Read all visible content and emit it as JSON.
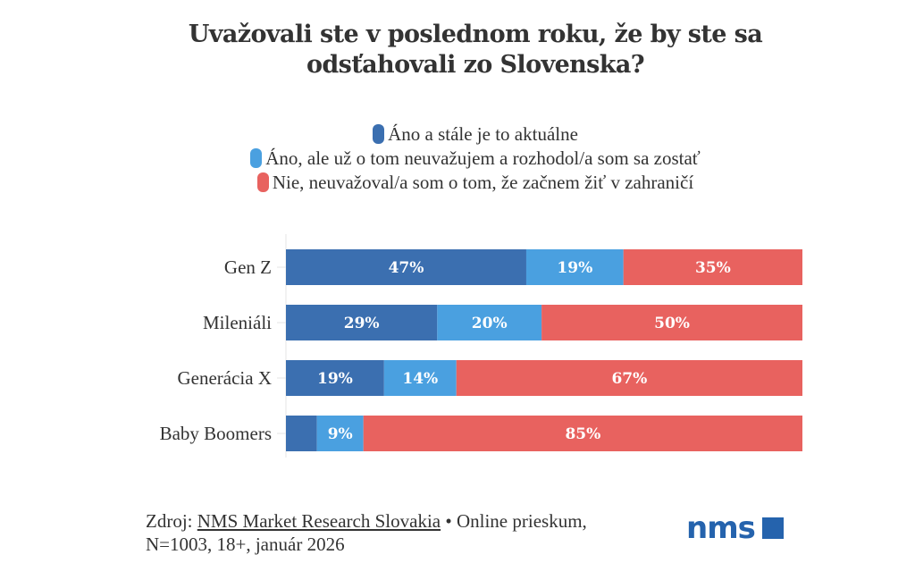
{
  "chart_data": {
    "type": "bar",
    "orientation": "horizontal",
    "stacked": true,
    "title": "Uvažovali ste v poslednom roku, že by ste sa odsťahovali zo Slovenska?",
    "title_lines": [
      "Uvažovali ste v poslednom roku, že by ste sa",
      "odsťahovali zo Slovenska?"
    ],
    "categories": [
      "Gen Z",
      "Mileniáli",
      "Generácia X",
      "Baby Boomers"
    ],
    "series": [
      {
        "name": "Áno a stále je to aktuálne",
        "color": "#3b6fb0",
        "values": [
          47,
          29,
          19,
          6
        ],
        "labels": [
          "47%",
          "29%",
          "19%",
          ""
        ]
      },
      {
        "name": "Áno, ale už o tom neuvažujem a rozhodol/a som sa zostať",
        "color": "#4aa0e0",
        "values": [
          19,
          20,
          14,
          9
        ],
        "labels": [
          "19%",
          "20%",
          "14%",
          "9%"
        ]
      },
      {
        "name": "Nie, neuvažoval/a som o tom, že začnem žiť v zahraničí",
        "color": "#e8625f",
        "values": [
          35,
          50,
          67,
          85
        ],
        "labels": [
          "35%",
          "50%",
          "67%",
          "85%"
        ]
      }
    ],
    "xlabel": "",
    "ylabel": "",
    "xlim": [
      0,
      100
    ],
    "grid": false,
    "legend": "top-center"
  },
  "footer": {
    "source_prefix": "Zdroj: ",
    "source_link": "NMS Market Research Slovakia",
    "source_suffix": " • Online prieskum,",
    "line2": "N=1003, 18+, január 2026"
  },
  "logo": {
    "text": "nms",
    "color": "#2563ad"
  }
}
